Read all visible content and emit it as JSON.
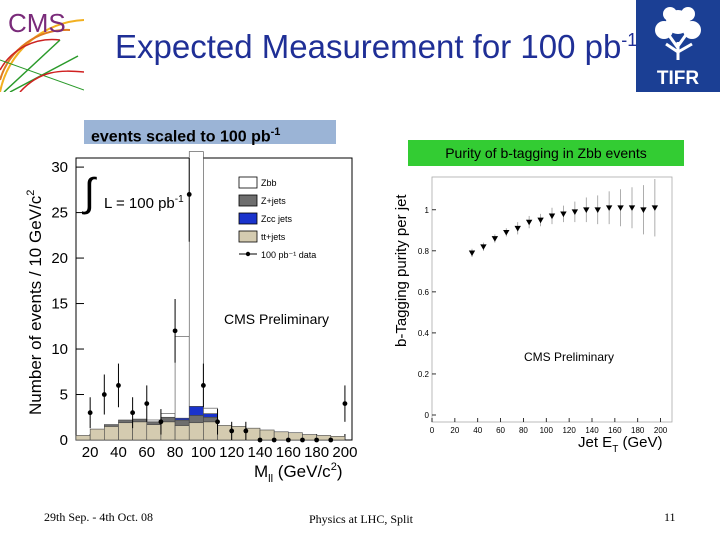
{
  "slide": {
    "title": "Expected Measurement for 100 pb",
    "title_sup": "-1",
    "scaled_note": "events scaled to 100 pb",
    "scaled_note_sup": "-1",
    "purity_note": "Purity of b-tagging in Zbb events",
    "logos": {
      "left": "CMS",
      "right": "TIFR"
    }
  },
  "footer": {
    "date": "29th Sep. - 4th Oct. 08",
    "conference": "Physics at LHC, Split",
    "page": "11"
  },
  "colors": {
    "title": "#1f2f96",
    "note_left_bg": "#9bb4d6",
    "note_right_bg": "#33cc33",
    "ttjets": "#d4cbb0",
    "zccjets": "#1a33cc",
    "zjets": "#6e6e6e",
    "zbb": "#ffffff"
  },
  "chart_data": [
    {
      "type": "bar",
      "ylabel": "Number of events / 10 GeV/c",
      "ylabel_sup": "2",
      "xlabel": "M",
      "xlabel_sub": "ll",
      "xlabel_unit": " (GeV/c",
      "xlabel_unit_sup": "2",
      "xlabel_close": ")",
      "xlim": [
        10,
        205
      ],
      "ylim": [
        0,
        31
      ],
      "xticks": [
        20,
        40,
        60,
        80,
        100,
        120,
        140,
        160,
        180,
        200
      ],
      "yticks": [
        0,
        5,
        10,
        15,
        20,
        25,
        30
      ],
      "lumi_label": "L = 100 pb",
      "lumi_sup": "-1",
      "annotation": "CMS Preliminary",
      "legend": [
        "Zbb",
        "Z+jets",
        "Zcc jets",
        "tt+jets",
        "100 pb⁻¹ data"
      ],
      "legend_position": "top-right",
      "bins": [
        15,
        25,
        35,
        45,
        55,
        65,
        75,
        85,
        95,
        105,
        115,
        125,
        135,
        145,
        155,
        165,
        175,
        185,
        195
      ],
      "ttjets": [
        0.5,
        1.2,
        1.5,
        1.9,
        2.0,
        1.7,
        2.0,
        1.6,
        1.9,
        2.0,
        1.6,
        1.5,
        1.3,
        1.1,
        0.9,
        0.8,
        0.6,
        0.5,
        0.4
      ],
      "zjets": [
        0,
        0,
        0.2,
        0.3,
        0.3,
        0.3,
        0.5,
        0.6,
        0.8,
        0.5,
        0,
        0,
        0,
        0,
        0,
        0,
        0,
        0,
        0
      ],
      "zccjets": [
        0,
        0,
        0,
        0,
        0,
        0,
        0,
        0.2,
        1.0,
        0.4,
        0,
        0,
        0,
        0,
        0,
        0,
        0,
        0,
        0
      ],
      "zbb": [
        0,
        0,
        0,
        0,
        0,
        0.2,
        0.4,
        9.0,
        28.0,
        0.6,
        0,
        0,
        0,
        0,
        0,
        0,
        0,
        0,
        0
      ],
      "data_x": [
        20,
        30,
        40,
        50,
        60,
        70,
        80,
        90,
        100,
        110,
        120,
        130,
        140,
        150,
        160,
        170,
        180,
        190,
        200
      ],
      "data_y": [
        3.0,
        5.0,
        6.0,
        3.0,
        4.0,
        2.0,
        12.0,
        27.0,
        6.0,
        2.0,
        1.0,
        1.0,
        0,
        0,
        0,
        0,
        0,
        0,
        4.0
      ],
      "data_err": [
        1.7,
        2.2,
        2.4,
        1.7,
        2.0,
        1.4,
        3.5,
        5.2,
        2.4,
        1.4,
        1.0,
        1.0,
        0,
        0,
        0,
        0,
        0,
        0,
        2.0
      ]
    },
    {
      "type": "scatter",
      "ylabel": "b-Tagging purity per jet",
      "xlabel": "Jet E",
      "xlabel_sub": "T",
      "xlabel_unit": " (GeV)",
      "xlim": [
        0,
        210
      ],
      "ylim": [
        0,
        1.15
      ],
      "xticks": [
        0,
        20,
        40,
        60,
        80,
        100,
        120,
        140,
        160,
        180,
        200
      ],
      "yticks": [
        0,
        0.2,
        0.4,
        0.6,
        0.8,
        1
      ],
      "ytick_labels": [
        "0",
        "0.2",
        "0.4",
        "0.6",
        "0.8",
        "1"
      ],
      "annotation": "CMS Preliminary",
      "x": [
        35,
        45,
        55,
        65,
        75,
        85,
        95,
        105,
        115,
        125,
        135,
        145,
        155,
        165,
        175,
        185,
        195
      ],
      "y": [
        0.79,
        0.82,
        0.86,
        0.89,
        0.91,
        0.94,
        0.95,
        0.97,
        0.98,
        0.99,
        1.0,
        1.0,
        1.01,
        1.01,
        1.01,
        1.0,
        1.01
      ],
      "err": [
        0.02,
        0.02,
        0.02,
        0.02,
        0.03,
        0.03,
        0.03,
        0.04,
        0.04,
        0.05,
        0.06,
        0.07,
        0.08,
        0.09,
        0.1,
        0.12,
        0.14
      ]
    }
  ]
}
